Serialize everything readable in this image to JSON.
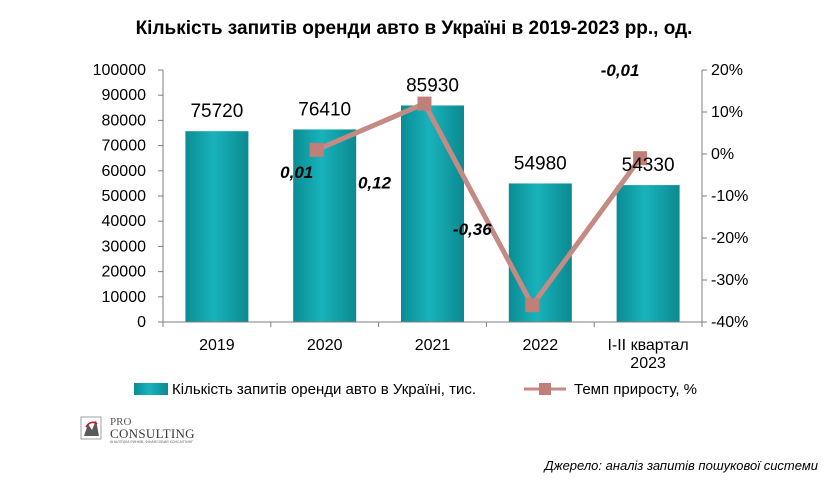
{
  "chart_data": {
    "type": "bar",
    "title": "Кількість запитів оренди авто в Україні в 2019-2023 рр., од.",
    "categories": [
      "2019",
      "2020",
      "2021",
      "2022",
      "І-ІІ квартал 2023"
    ],
    "series": [
      {
        "name": "Кількість запитів оренди авто в Україні, тис.",
        "type": "bar",
        "axis": "left",
        "values": [
          75720,
          76410,
          85930,
          54980,
          54330
        ],
        "labels": [
          "75720",
          "76410",
          "85930",
          "54980",
          "54330"
        ]
      },
      {
        "name": "Темп приросту, %",
        "type": "line",
        "axis": "right",
        "values": [
          null,
          0.01,
          0.12,
          -0.36,
          -0.01
        ],
        "labels": [
          "",
          "0,01",
          "0,12",
          "-0,36",
          "-0,01"
        ]
      }
    ],
    "y_left": {
      "ylim": [
        0,
        100000
      ],
      "ticks": [
        "0",
        "10000",
        "20000",
        "30000",
        "40000",
        "50000",
        "60000",
        "70000",
        "80000",
        "90000",
        "100000"
      ]
    },
    "y_right": {
      "ylim": [
        -0.4,
        0.2
      ],
      "ticks": [
        "-40%",
        "-30%",
        "-20%",
        "-10%",
        "0%",
        "10%",
        "20%"
      ]
    },
    "grid": false,
    "legend_position": "bottom",
    "colors": {
      "bar": "#12A6AE",
      "bar_dark": "#0A7F86",
      "line": "#C48A84",
      "marker": "#C07F79"
    }
  },
  "logo": {
    "pro": "PRO",
    "consulting": "CONSULTING",
    "tagline": "АНАЛІТИКА РИНКІВ, ФІНАНСОВИЙ КОНСАЛТИНГ"
  },
  "source_note": "Джерело: аналіз запитів пошукової системи"
}
